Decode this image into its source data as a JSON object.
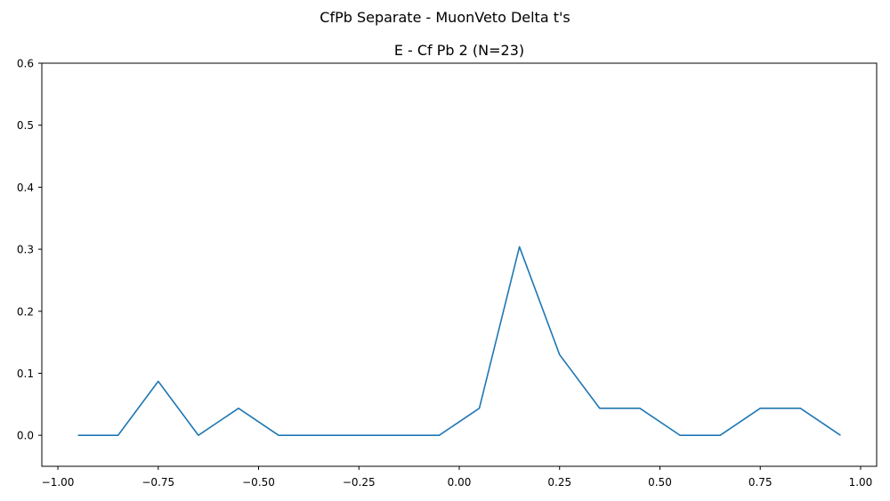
{
  "figure": {
    "suptitle": "CfPb Separate - MuonVeto Delta t's"
  },
  "chart_data": {
    "type": "line",
    "title": "E - Cf Pb 2 (N=23)",
    "xlabel": "",
    "ylabel": "",
    "xlim": [
      -1.04,
      1.04
    ],
    "ylim": [
      -0.05,
      0.6
    ],
    "x_ticks": [
      -1.0,
      -0.75,
      -0.5,
      -0.25,
      0.0,
      0.25,
      0.5,
      0.75,
      1.0
    ],
    "x_tick_labels": [
      "−1.00",
      "−0.75",
      "−0.50",
      "−0.25",
      "0.00",
      "0.25",
      "0.50",
      "0.75",
      "1.00"
    ],
    "y_ticks": [
      0.0,
      0.1,
      0.2,
      0.3,
      0.4,
      0.5,
      0.6
    ],
    "y_tick_labels": [
      "0.0",
      "0.1",
      "0.2",
      "0.3",
      "0.4",
      "0.5",
      "0.6"
    ],
    "grid": false,
    "legend": "none",
    "series": [
      {
        "color": "#1f77b4",
        "x": [
          -0.95,
          -0.85,
          -0.75,
          -0.65,
          -0.55,
          -0.45,
          -0.35,
          -0.25,
          -0.15,
          -0.05,
          0.05,
          0.15,
          0.25,
          0.35,
          0.45,
          0.55,
          0.65,
          0.75,
          0.85,
          0.95
        ],
        "y": [
          0.0,
          0.0,
          0.087,
          0.0,
          0.0435,
          0.0,
          0.0,
          0.0,
          0.0,
          0.0,
          0.0435,
          0.304,
          0.13,
          0.0435,
          0.0435,
          0.0,
          0.0,
          0.0435,
          0.0435,
          0.0
        ]
      }
    ]
  }
}
